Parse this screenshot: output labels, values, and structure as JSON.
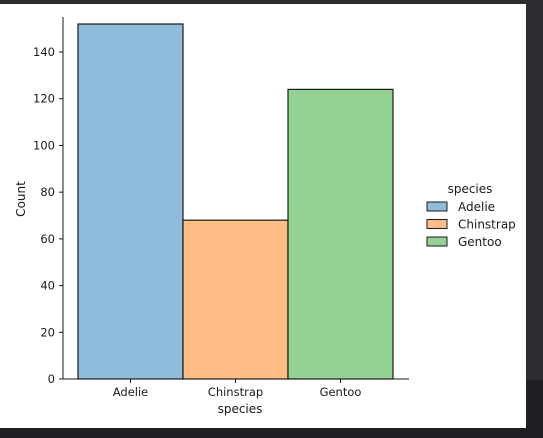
{
  "chart_data": {
    "type": "bar",
    "xlabel": "species",
    "ylabel": "Count",
    "categories": [
      "Adelie",
      "Chinstrap",
      "Gentoo"
    ],
    "values": [
      152,
      68,
      124
    ],
    "colors": [
      "#8fbcdd",
      "#ffbd85",
      "#94d294"
    ],
    "ylim": [
      0,
      155
    ],
    "yticks": [
      0,
      20,
      40,
      60,
      80,
      100,
      120,
      140
    ],
    "grid": false,
    "legend": {
      "title": "species",
      "placement": "right",
      "entries": [
        "Adelie",
        "Chinstrap",
        "Gentoo"
      ]
    }
  }
}
